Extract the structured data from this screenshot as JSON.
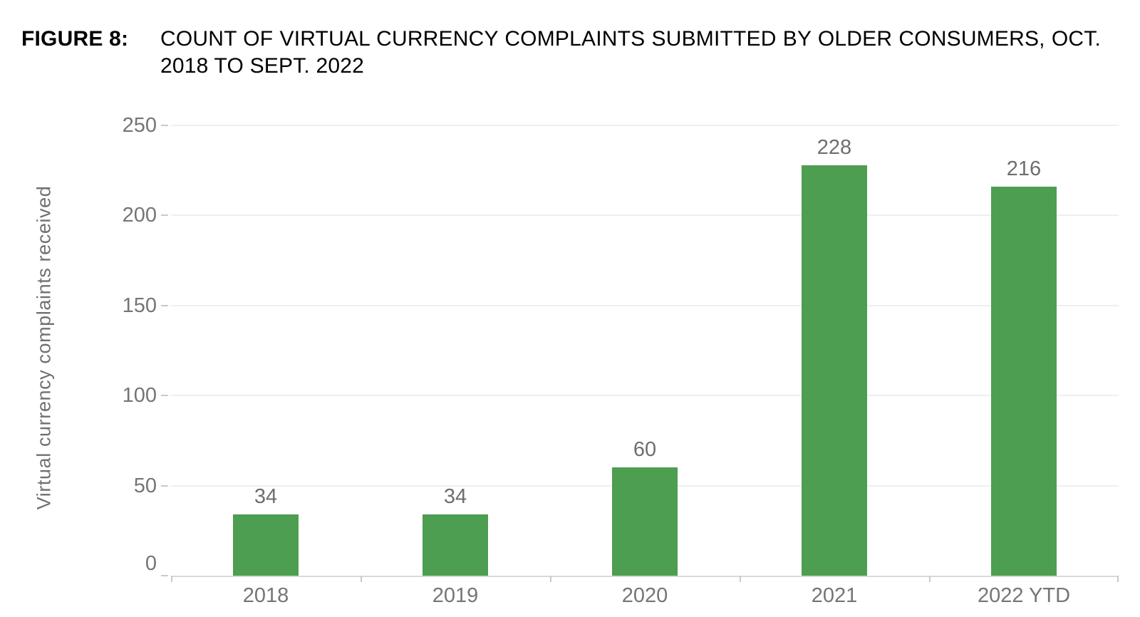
{
  "figure": {
    "label": "FIGURE 8:",
    "title": "COUNT OF VIRTUAL CURRENCY COMPLAINTS SUBMITTED BY OLDER CONSUMERS, OCT. 2018 TO SEPT. 2022"
  },
  "chart_data": {
    "type": "bar",
    "categories": [
      "2018",
      "2019",
      "2020",
      "2021",
      "2022 YTD"
    ],
    "values": [
      34,
      34,
      60,
      228,
      216
    ],
    "value_labels": [
      "34",
      "34",
      "60",
      "228",
      "216"
    ],
    "title": "",
    "xlabel": "",
    "ylabel": "Virtual currency complaints received",
    "ylim": [
      0,
      250
    ],
    "yticks": [
      0,
      50,
      100,
      150,
      200,
      250
    ],
    "grid": true,
    "legend": false,
    "bar_color": "#4d9e50",
    "grid_color": "#efefef",
    "axis_line_color": "#d9d9d9",
    "tick_mark_color": "#c9c9c9",
    "tick_label_color": "#757575",
    "value_label_color": "#6e6e6e",
    "axis_title_color": "#707070"
  }
}
